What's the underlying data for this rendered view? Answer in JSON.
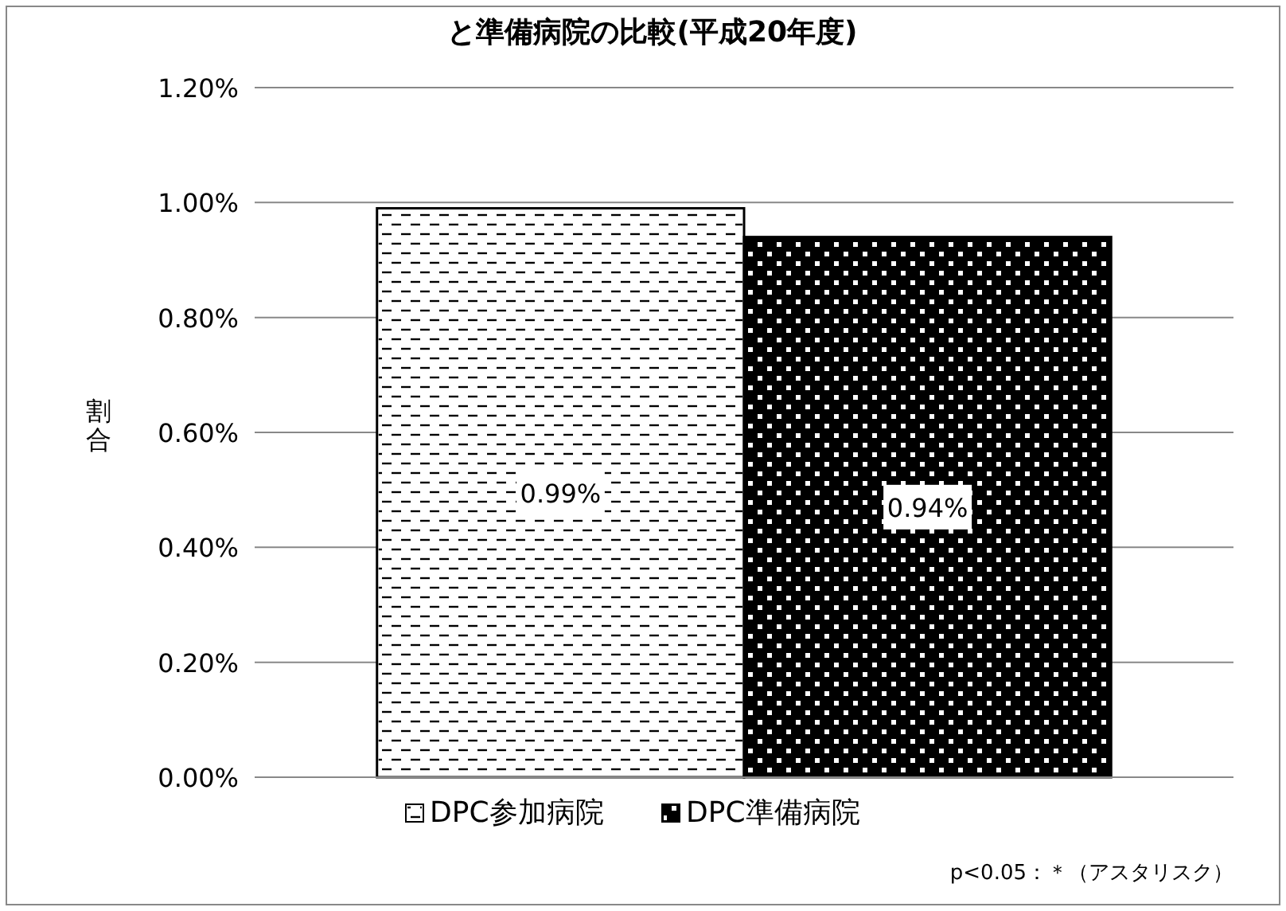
{
  "chart_data": {
    "type": "bar",
    "title": "と準備病院の比較(平成20年度)",
    "ylabel": "割合",
    "categories": [
      null
    ],
    "series": [
      {
        "name": "DPC参加病院",
        "color": "#ffffff",
        "values": [
          0.99
        ]
      },
      {
        "name": "DPC準備病院",
        "color": "#000000",
        "values": [
          0.94
        ]
      }
    ],
    "ylim": [
      0,
      1.2
    ],
    "yticks": [
      {
        "value": 0,
        "label": "0.00%"
      },
      {
        "value": 0.2,
        "label": "0.20%"
      },
      {
        "value": 0.4,
        "label": "0.40%"
      },
      {
        "value": 0.6,
        "label": "0.60%"
      },
      {
        "value": 0.8,
        "label": "0.80%"
      },
      {
        "value": 1.0,
        "label": "1.00%"
      },
      {
        "value": 1.2,
        "label": "1.20%"
      }
    ],
    "grid": "y",
    "legend": "bottom",
    "value_labels": [
      "0.99%",
      "0.94%"
    ],
    "annotations": [
      "p<0.05：＊（アスタリスク）"
    ]
  }
}
